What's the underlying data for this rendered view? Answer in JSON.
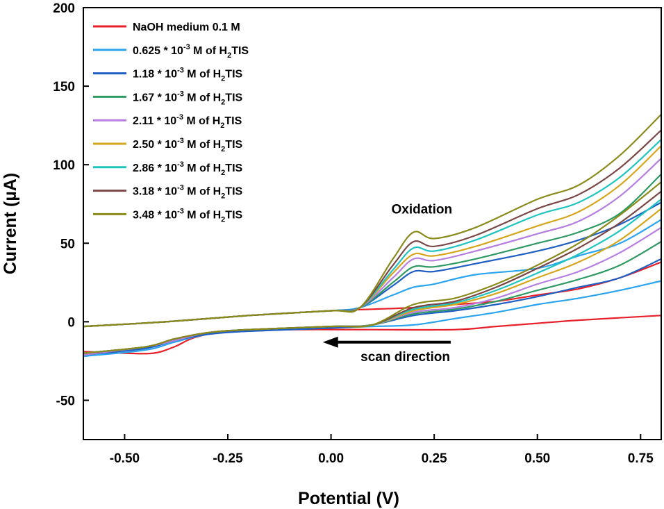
{
  "chart_data": {
    "type": "line",
    "title": "",
    "xlabel": "Potential (V)",
    "ylabel": "Current (µA)",
    "xlim": [
      -0.6,
      0.8
    ],
    "ylim": [
      -75,
      200
    ],
    "xticks": [
      -0.5,
      -0.25,
      0.0,
      0.25,
      0.5,
      0.75
    ],
    "xtick_labels": [
      "-0.50",
      "-0.25",
      "0.00",
      "0.25",
      "0.50",
      "0.75"
    ],
    "yticks": [
      -50,
      0,
      50,
      100,
      150,
      200
    ],
    "ytick_labels": [
      "-50",
      "0",
      "50",
      "100",
      "150",
      "200"
    ],
    "grid": false,
    "legend_position": "top-left",
    "annotations": [
      {
        "text": "Oxidation",
        "x": 0.22,
        "y": 69
      },
      {
        "text": "scan direction",
        "x": 0.18,
        "y": -25,
        "arrow_from_x": 0.29,
        "arrow_to_x": -0.02,
        "arrow_y": -13
      }
    ],
    "series": [
      {
        "name": "NaOH medium 0.1 M",
        "prefix": "NaOH medium 0.1 M",
        "exp": "",
        "suffix": "",
        "color": "#e8202a",
        "forward": [
          [
            -0.6,
            -3
          ],
          [
            -0.4,
            0
          ],
          [
            -0.2,
            4
          ],
          [
            0,
            7
          ],
          [
            0.1,
            8
          ],
          [
            0.2,
            9
          ],
          [
            0.3,
            11
          ],
          [
            0.4,
            13
          ],
          [
            0.5,
            17
          ],
          [
            0.6,
            21
          ],
          [
            0.7,
            28
          ],
          [
            0.8,
            38
          ]
        ],
        "reverse": [
          [
            0.8,
            4
          ],
          [
            0.6,
            1
          ],
          [
            0.5,
            -1
          ],
          [
            0.4,
            -3
          ],
          [
            0.3,
            -5
          ],
          [
            0.1,
            -5
          ],
          [
            -0.1,
            -5
          ],
          [
            -0.25,
            -6
          ],
          [
            -0.33,
            -10
          ],
          [
            -0.38,
            -16
          ],
          [
            -0.43,
            -20
          ],
          [
            -0.5,
            -20
          ],
          [
            -0.6,
            -19
          ]
        ]
      },
      {
        "name": "0.625 * 10-3 M of H2TIS",
        "prefix": "0.625 * 10",
        "exp": "-3",
        "suffix": " M of H",
        "sub": "2",
        "tail": "TIS",
        "color": "#2aa4ee",
        "forward": [
          [
            -0.6,
            -3
          ],
          [
            -0.4,
            0
          ],
          [
            -0.2,
            4
          ],
          [
            0,
            7
          ],
          [
            0.07,
            9
          ],
          [
            0.15,
            17
          ],
          [
            0.2,
            22
          ],
          [
            0.25,
            24
          ],
          [
            0.35,
            30
          ],
          [
            0.5,
            34
          ],
          [
            0.6,
            42
          ],
          [
            0.7,
            50
          ],
          [
            0.8,
            65
          ]
        ],
        "reverse": [
          [
            0.8,
            26
          ],
          [
            0.7,
            20
          ],
          [
            0.6,
            15
          ],
          [
            0.5,
            11
          ],
          [
            0.4,
            6
          ],
          [
            0.3,
            2
          ],
          [
            0.2,
            -2
          ],
          [
            0.1,
            -3
          ],
          [
            0,
            -4
          ],
          [
            -0.2,
            -6
          ],
          [
            -0.3,
            -8
          ],
          [
            -0.38,
            -13
          ],
          [
            -0.45,
            -18
          ],
          [
            -0.6,
            -22
          ]
        ]
      },
      {
        "name": "1.18 * 10-3 M of H2TIS",
        "prefix": "1.18 * 10",
        "exp": "-3",
        "suffix": " M of H",
        "sub": "2",
        "tail": "TIS",
        "color": "#1f5fc4",
        "forward": [
          [
            -0.6,
            -3
          ],
          [
            -0.4,
            0
          ],
          [
            -0.2,
            4
          ],
          [
            0,
            7
          ],
          [
            0.07,
            9
          ],
          [
            0.15,
            23
          ],
          [
            0.2,
            32
          ],
          [
            0.25,
            32
          ],
          [
            0.35,
            37
          ],
          [
            0.5,
            45
          ],
          [
            0.6,
            52
          ],
          [
            0.7,
            62
          ],
          [
            0.8,
            76
          ]
        ],
        "reverse": [
          [
            0.8,
            40
          ],
          [
            0.7,
            28
          ],
          [
            0.6,
            22
          ],
          [
            0.5,
            16
          ],
          [
            0.4,
            11
          ],
          [
            0.3,
            7
          ],
          [
            0.2,
            4
          ],
          [
            0.1,
            -2
          ],
          [
            0,
            -4
          ],
          [
            -0.2,
            -6
          ],
          [
            -0.3,
            -8
          ],
          [
            -0.38,
            -12
          ],
          [
            -0.45,
            -17
          ],
          [
            -0.6,
            -21
          ]
        ]
      },
      {
        "name": "1.67 * 10-3 M of H2TIS",
        "prefix": "1.67 * 10",
        "exp": "-3",
        "suffix": " M of H",
        "sub": "2",
        "tail": "TIS",
        "color": "#2e9a62",
        "forward": [
          [
            -0.6,
            -3
          ],
          [
            -0.4,
            0
          ],
          [
            -0.2,
            4
          ],
          [
            0,
            7
          ],
          [
            0.07,
            9
          ],
          [
            0.15,
            25
          ],
          [
            0.2,
            35
          ],
          [
            0.25,
            35
          ],
          [
            0.35,
            40
          ],
          [
            0.5,
            50
          ],
          [
            0.6,
            57
          ],
          [
            0.7,
            69
          ],
          [
            0.8,
            94
          ]
        ],
        "reverse": [
          [
            0.8,
            51
          ],
          [
            0.7,
            36
          ],
          [
            0.6,
            27
          ],
          [
            0.5,
            20
          ],
          [
            0.4,
            13
          ],
          [
            0.3,
            8
          ],
          [
            0.2,
            5
          ],
          [
            0.1,
            -2
          ],
          [
            0,
            -3
          ],
          [
            -0.2,
            -5
          ],
          [
            -0.3,
            -7
          ],
          [
            -0.38,
            -12
          ],
          [
            -0.45,
            -16
          ],
          [
            -0.6,
            -21
          ]
        ]
      },
      {
        "name": "2.11 * 10-3 M of H2TIS",
        "prefix": "2.11 * 10",
        "exp": "-3",
        "suffix": " M of H",
        "sub": "2",
        "tail": "TIS",
        "color": "#b57ee0",
        "forward": [
          [
            -0.6,
            -3
          ],
          [
            -0.4,
            0
          ],
          [
            -0.2,
            4
          ],
          [
            0,
            7
          ],
          [
            0.07,
            9
          ],
          [
            0.15,
            28
          ],
          [
            0.2,
            40
          ],
          [
            0.25,
            39
          ],
          [
            0.35,
            45
          ],
          [
            0.5,
            56
          ],
          [
            0.6,
            64
          ],
          [
            0.7,
            80
          ],
          [
            0.8,
            104
          ]
        ],
        "reverse": [
          [
            0.8,
            60
          ],
          [
            0.7,
            44
          ],
          [
            0.6,
            32
          ],
          [
            0.5,
            24
          ],
          [
            0.4,
            15
          ],
          [
            0.3,
            9
          ],
          [
            0.2,
            6
          ],
          [
            0.1,
            -2
          ],
          [
            0,
            -3
          ],
          [
            -0.2,
            -5
          ],
          [
            -0.3,
            -7
          ],
          [
            -0.38,
            -12
          ],
          [
            -0.45,
            -16
          ],
          [
            -0.6,
            -21
          ]
        ]
      },
      {
        "name": "2.50 * 10-3 M of H2TIS",
        "prefix": "2.50 * 10",
        "exp": "-3",
        "suffix": " M of H",
        "sub": "2",
        "tail": "TIS",
        "color": "#d6a51c",
        "forward": [
          [
            -0.6,
            -3
          ],
          [
            -0.4,
            0
          ],
          [
            -0.2,
            4
          ],
          [
            0,
            7
          ],
          [
            0.07,
            9
          ],
          [
            0.15,
            31
          ],
          [
            0.2,
            43
          ],
          [
            0.25,
            42
          ],
          [
            0.35,
            48
          ],
          [
            0.5,
            61
          ],
          [
            0.6,
            70
          ],
          [
            0.7,
            87
          ],
          [
            0.8,
            112
          ]
        ],
        "reverse": [
          [
            0.8,
            72
          ],
          [
            0.7,
            52
          ],
          [
            0.6,
            38
          ],
          [
            0.5,
            28
          ],
          [
            0.4,
            18
          ],
          [
            0.3,
            11
          ],
          [
            0.2,
            7
          ],
          [
            0.1,
            -2
          ],
          [
            0,
            -3
          ],
          [
            -0.2,
            -5
          ],
          [
            -0.3,
            -7
          ],
          [
            -0.38,
            -11
          ],
          [
            -0.45,
            -16
          ],
          [
            -0.6,
            -20
          ]
        ]
      },
      {
        "name": "2.86 * 10-3 M of H2TIS",
        "prefix": "2.86 * 10",
        "exp": "-3",
        "suffix": " M of H",
        "sub": "2",
        "tail": "TIS",
        "color": "#1fc4c0",
        "forward": [
          [
            -0.6,
            -3
          ],
          [
            -0.4,
            0
          ],
          [
            -0.2,
            4
          ],
          [
            0,
            7
          ],
          [
            0.07,
            9
          ],
          [
            0.15,
            33
          ],
          [
            0.2,
            47
          ],
          [
            0.25,
            45
          ],
          [
            0.35,
            52
          ],
          [
            0.5,
            68
          ],
          [
            0.6,
            76
          ],
          [
            0.7,
            92
          ],
          [
            0.8,
            116
          ]
        ],
        "reverse": [
          [
            0.8,
            78
          ],
          [
            0.7,
            58
          ],
          [
            0.6,
            43
          ],
          [
            0.5,
            31
          ],
          [
            0.4,
            20
          ],
          [
            0.3,
            12
          ],
          [
            0.2,
            8
          ],
          [
            0.1,
            -2
          ],
          [
            0,
            -3
          ],
          [
            -0.2,
            -5
          ],
          [
            -0.3,
            -7
          ],
          [
            -0.38,
            -11
          ],
          [
            -0.45,
            -16
          ],
          [
            -0.6,
            -20
          ]
        ]
      },
      {
        "name": "3.18 * 10-3 M of H2TIS",
        "prefix": "3.18 * 10",
        "exp": "-3",
        "suffix": " M of H",
        "sub": "2",
        "tail": "TIS",
        "color": "#7a4646",
        "forward": [
          [
            -0.6,
            -3
          ],
          [
            -0.4,
            0
          ],
          [
            -0.2,
            4
          ],
          [
            0,
            7
          ],
          [
            0.07,
            9
          ],
          [
            0.15,
            36
          ],
          [
            0.2,
            51
          ],
          [
            0.25,
            48
          ],
          [
            0.35,
            55
          ],
          [
            0.5,
            72
          ],
          [
            0.6,
            81
          ],
          [
            0.7,
            98
          ],
          [
            0.8,
            122
          ]
        ],
        "reverse": [
          [
            0.8,
            83
          ],
          [
            0.7,
            63
          ],
          [
            0.6,
            47
          ],
          [
            0.5,
            34
          ],
          [
            0.4,
            22
          ],
          [
            0.3,
            13
          ],
          [
            0.2,
            9
          ],
          [
            0.1,
            -2
          ],
          [
            0,
            -3
          ],
          [
            -0.2,
            -5
          ],
          [
            -0.3,
            -7
          ],
          [
            -0.38,
            -11
          ],
          [
            -0.45,
            -16
          ],
          [
            -0.6,
            -20
          ]
        ]
      },
      {
        "name": "3.48 * 10-3 M of H2TIS",
        "prefix": "3.48 * 10",
        "exp": "-3",
        "suffix": " M of H",
        "sub": "2",
        "tail": "TIS",
        "color": "#8a8a1a",
        "forward": [
          [
            -0.6,
            -3
          ],
          [
            -0.4,
            0
          ],
          [
            -0.2,
            4
          ],
          [
            0,
            7
          ],
          [
            0.07,
            9
          ],
          [
            0.15,
            40
          ],
          [
            0.2,
            57
          ],
          [
            0.25,
            53
          ],
          [
            0.35,
            60
          ],
          [
            0.5,
            78
          ],
          [
            0.6,
            87
          ],
          [
            0.7,
            106
          ],
          [
            0.8,
            132
          ]
        ],
        "reverse": [
          [
            0.8,
            89
          ],
          [
            0.7,
            68
          ],
          [
            0.6,
            50
          ],
          [
            0.5,
            36
          ],
          [
            0.4,
            24
          ],
          [
            0.3,
            15
          ],
          [
            0.2,
            11
          ],
          [
            0.1,
            -2
          ],
          [
            0,
            -3
          ],
          [
            -0.2,
            -5
          ],
          [
            -0.3,
            -7
          ],
          [
            -0.38,
            -11
          ],
          [
            -0.45,
            -16
          ],
          [
            -0.6,
            -20
          ]
        ]
      }
    ]
  }
}
